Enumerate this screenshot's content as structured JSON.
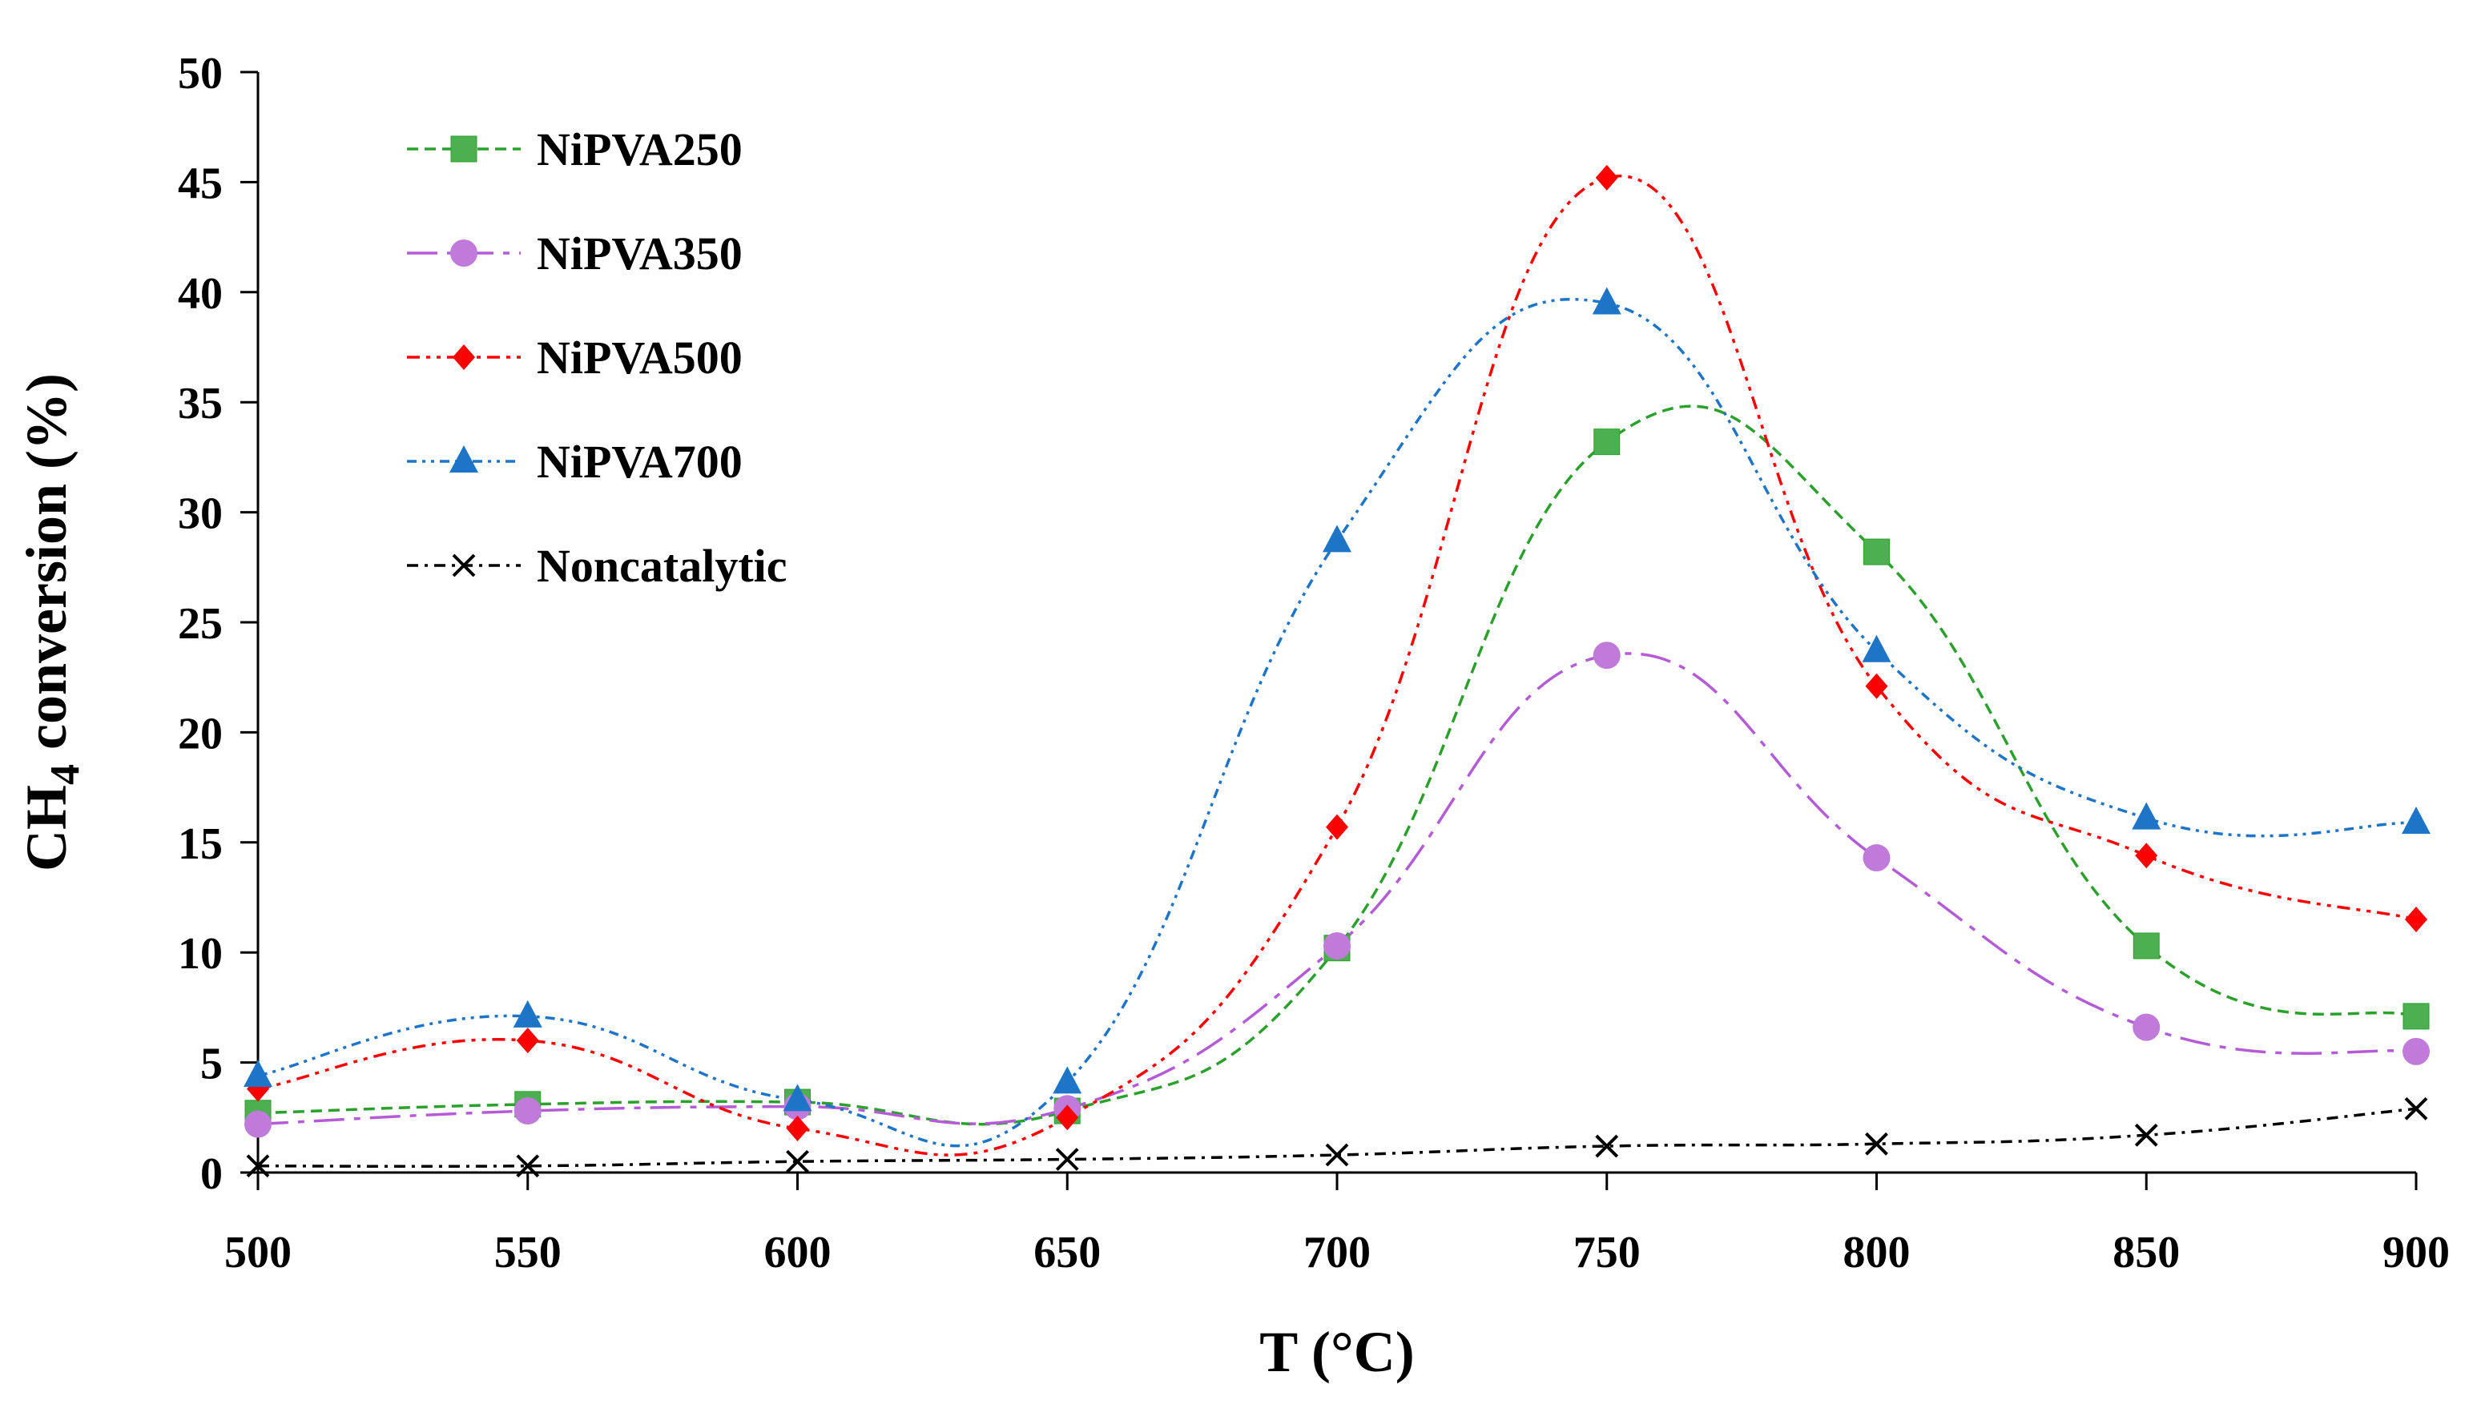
{
  "chart_data": {
    "type": "line",
    "title": "",
    "xlabel": "T (°C)",
    "ylabel": {
      "prefix": "CH",
      "subscript": "4",
      "suffix": " conversion (%)"
    },
    "x": [
      500,
      550,
      600,
      650,
      700,
      750,
      800,
      850,
      900
    ],
    "xlim": [
      500,
      900
    ],
    "ylim": [
      0,
      50
    ],
    "x_ticks": [
      "500",
      "550",
      "600",
      "650",
      "700",
      "750",
      "800",
      "850",
      "900"
    ],
    "y_ticks": [
      "0",
      "5",
      "10",
      "15",
      "20",
      "25",
      "30",
      "35",
      "40",
      "45",
      "50"
    ],
    "grid": false,
    "legend_position": "top-left",
    "series": [
      {
        "name": "NiPVA250",
        "color": "#2ca02c",
        "fill": "#4caf50",
        "marker": "square",
        "dash": "dash",
        "values": [
          2.7,
          3.1,
          3.2,
          2.8,
          10.2,
          33.2,
          28.2,
          10.3,
          7.1
        ]
      },
      {
        "name": "NiPVA350",
        "color": "#b35cd6",
        "fill": "#c07ada",
        "marker": "circle",
        "dash": "long-dash-dot",
        "values": [
          2.2,
          2.8,
          3.0,
          2.9,
          10.3,
          23.5,
          14.3,
          6.6,
          5.5
        ]
      },
      {
        "name": "NiPVA500",
        "color": "#ff0000",
        "fill": "#ff0000",
        "marker": "diamond",
        "dash": "dash-dot-dot",
        "values": [
          3.8,
          6.0,
          2.0,
          2.5,
          15.7,
          45.2,
          22.1,
          14.4,
          11.5
        ]
      },
      {
        "name": "NiPVA700",
        "color": "#1e74c6",
        "fill": "#1e74c6",
        "marker": "triangle",
        "dash": "dash-dot-dot-fine",
        "values": [
          4.4,
          7.1,
          3.3,
          4.1,
          28.7,
          39.5,
          23.7,
          16.1,
          15.9
        ]
      },
      {
        "name": "Noncatalytic",
        "color": "#000000",
        "fill": "#000000",
        "marker": "cross",
        "dash": "dash-dot",
        "values": [
          0.3,
          0.3,
          0.5,
          0.6,
          0.8,
          1.2,
          1.3,
          1.7,
          2.9
        ]
      }
    ]
  }
}
